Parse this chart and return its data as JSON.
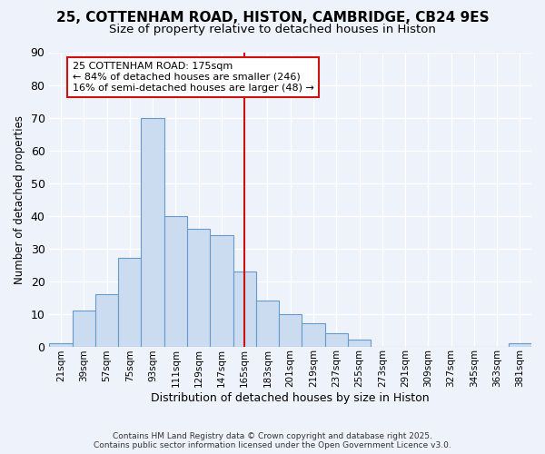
{
  "title_line1": "25, COTTENHAM ROAD, HISTON, CAMBRIDGE, CB24 9ES",
  "title_line2": "Size of property relative to detached houses in Histon",
  "xlabel": "Distribution of detached houses by size in Histon",
  "ylabel": "Number of detached properties",
  "bin_labels": [
    "21sqm",
    "39sqm",
    "57sqm",
    "75sqm",
    "93sqm",
    "111sqm",
    "129sqm",
    "147sqm",
    "165sqm",
    "183sqm",
    "201sqm",
    "219sqm",
    "237sqm",
    "255sqm",
    "273sqm",
    "291sqm",
    "309sqm",
    "327sqm",
    "345sqm",
    "363sqm",
    "381sqm"
  ],
  "bar_heights": [
    1,
    11,
    16,
    27,
    70,
    40,
    36,
    34,
    23,
    14,
    10,
    7,
    4,
    2,
    0,
    0,
    0,
    0,
    0,
    0,
    1
  ],
  "bar_color": "#ccdcf0",
  "bar_edge_color": "#6699cc",
  "vline_index": 8,
  "vline_color": "#cc1111",
  "annotation_title": "25 COTTENHAM ROAD: 175sqm",
  "annotation_line1": "← 84% of detached houses are smaller (246)",
  "annotation_line2": "16% of semi-detached houses are larger (48) →",
  "annotation_box_facecolor": "#ffffff",
  "annotation_box_edgecolor": "#cc1111",
  "ylim": [
    0,
    90
  ],
  "yticks": [
    0,
    10,
    20,
    30,
    40,
    50,
    60,
    70,
    80,
    90
  ],
  "background_color": "#eef2fa",
  "grid_color": "#ffffff",
  "footer_line1": "Contains HM Land Registry data © Crown copyright and database right 2025.",
  "footer_line2": "Contains public sector information licensed under the Open Government Licence v3.0."
}
